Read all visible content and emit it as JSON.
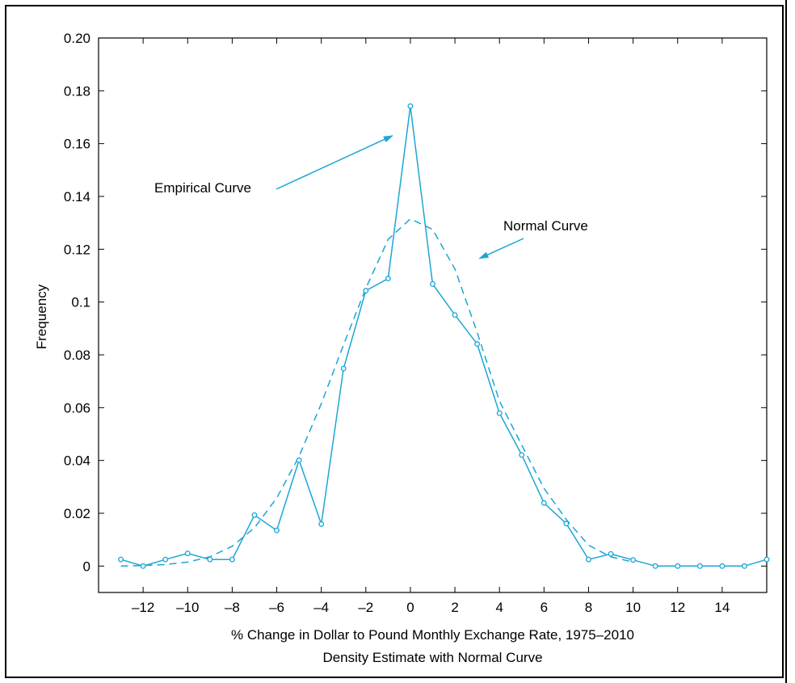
{
  "chart_data": {
    "type": "line",
    "title": "",
    "xlabel": "% Change in Dollar to Pound Monthly Exchange Rate, 1975–2010",
    "subtitle": "Density Estimate with Normal Curve",
    "ylabel": "Frequency",
    "xlim": [
      -14,
      16
    ],
    "ylim": [
      -0.01,
      0.2
    ],
    "x_ticks": [
      -12,
      -10,
      -8,
      -6,
      -4,
      -2,
      0,
      2,
      4,
      6,
      8,
      10,
      12,
      14
    ],
    "x_tick_labels": [
      "–12",
      "–10",
      "–8",
      "–6",
      "–4",
      "–2",
      "0",
      "2",
      "4",
      "6",
      "8",
      "10",
      "12",
      "14"
    ],
    "y_ticks": [
      0,
      0.02,
      0.04,
      0.06,
      0.08,
      0.1,
      0.12,
      0.14,
      0.16,
      0.18,
      0.2
    ],
    "y_tick_labels": [
      "0",
      "0.02",
      "0.04",
      "0.06",
      "0.08",
      "0.1",
      "0.12",
      "0.14",
      "0.16",
      "0.18",
      "0.20"
    ],
    "grid": false,
    "color": "#1aa6d6",
    "series": [
      {
        "name": "Empirical Curve",
        "style": "solid-markers",
        "x": [
          -13,
          -12,
          -11,
          -10,
          -9,
          -8,
          -7,
          -6,
          -5,
          -4,
          -3,
          -2,
          -1,
          0,
          1,
          2,
          3,
          4,
          5,
          6,
          7,
          8,
          9,
          10,
          11,
          12,
          13,
          14,
          15,
          16
        ],
        "y": [
          0.0025,
          0.0,
          0.0025,
          0.0048,
          0.0025,
          0.0025,
          0.0193,
          0.0135,
          0.0401,
          0.0159,
          0.0748,
          0.1043,
          0.1089,
          0.1742,
          0.1068,
          0.0951,
          0.0841,
          0.0579,
          0.0421,
          0.0239,
          0.0161,
          0.0025,
          0.0046,
          0.0023,
          0.0,
          0.0,
          0.0,
          0.0,
          0.0,
          0.0025
        ]
      },
      {
        "name": "Normal Curve",
        "style": "dashed",
        "x": [
          -13,
          -12,
          -11,
          -10,
          -9,
          -8,
          -7,
          -6,
          -5,
          -4,
          -3,
          -2,
          -1,
          0,
          1,
          2,
          3,
          4,
          5,
          6,
          7,
          8,
          9,
          10
        ],
        "y": [
          0.0,
          0.0002,
          0.0006,
          0.0015,
          0.0035,
          0.0075,
          0.0145,
          0.0258,
          0.0415,
          0.0615,
          0.0838,
          0.1052,
          0.1237,
          0.1315,
          0.1275,
          0.1125,
          0.0885,
          0.0625,
          0.0458,
          0.0295,
          0.0176,
          0.0079,
          0.0035,
          0.0015
        ]
      }
    ],
    "annotations": [
      {
        "text": "Empirical Curve",
        "arrow_to": [
          -0.8,
          0.163
        ]
      },
      {
        "text": "Normal Curve",
        "arrow_to": [
          3.1,
          0.1165
        ]
      }
    ]
  }
}
